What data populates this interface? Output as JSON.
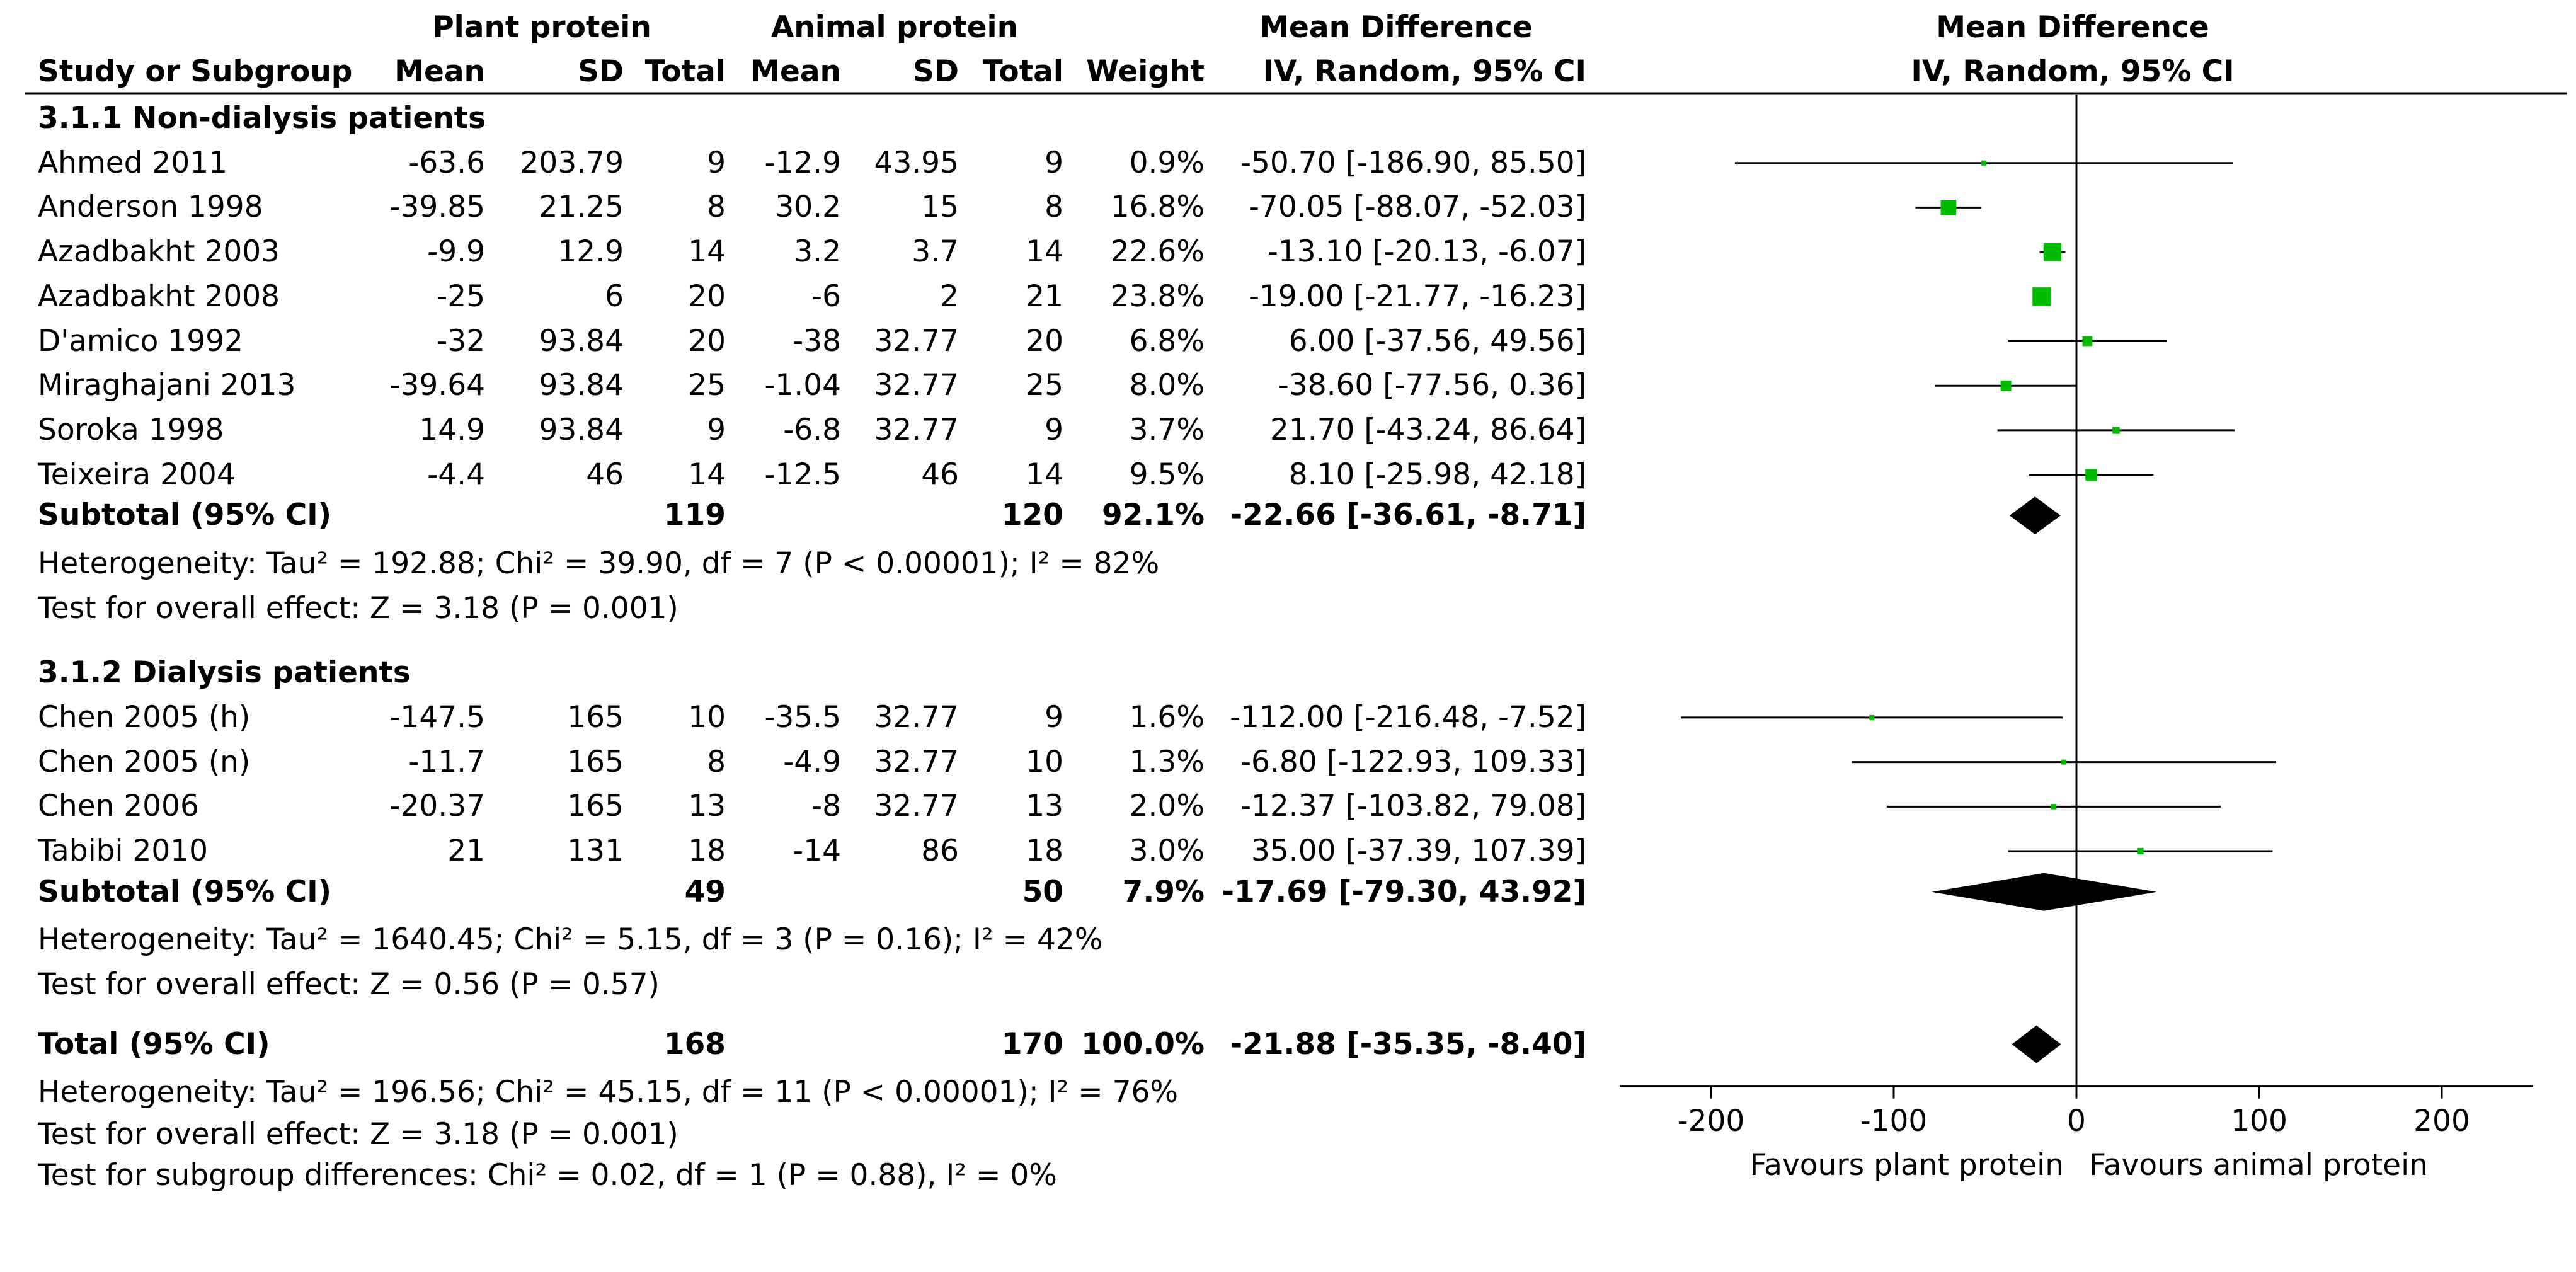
{
  "headers": {
    "plant_group": "Plant protein",
    "animal_group": "Animal protein",
    "md_group": "Mean Difference",
    "plot_group": "Mean Difference",
    "study": "Study or Subgroup",
    "mean": "Mean",
    "sd": "SD",
    "total": "Total",
    "weight": "Weight",
    "method": "IV, Random, 95% CI",
    "plot_method": "IV, Random, 95% CI"
  },
  "subgroups": [
    {
      "title": "3.1.1 Non-dialysis patients",
      "studies": [
        {
          "name": "Ahmed 2011",
          "pm": "-63.6",
          "psd": "203.79",
          "pn": "9",
          "am": "-12.9",
          "asd": "43.95",
          "an": "9",
          "weight": "0.9%",
          "ci": "-50.70 [-186.90, 85.50]",
          "md": -50.7,
          "lo": -186.9,
          "hi": 85.5,
          "w": 0.9
        },
        {
          "name": "Anderson 1998",
          "pm": "-39.85",
          "psd": "21.25",
          "pn": "8",
          "am": "30.2",
          "asd": "15",
          "an": "8",
          "weight": "16.8%",
          "ci": "-70.05 [-88.07, -52.03]",
          "md": -70.05,
          "lo": -88.07,
          "hi": -52.03,
          "w": 16.8
        },
        {
          "name": "Azadbakht 2003",
          "pm": "-9.9",
          "psd": "12.9",
          "pn": "14",
          "am": "3.2",
          "asd": "3.7",
          "an": "14",
          "weight": "22.6%",
          "ci": "-13.10 [-20.13, -6.07]",
          "md": -13.1,
          "lo": -20.13,
          "hi": -6.07,
          "w": 22.6
        },
        {
          "name": "Azadbakht 2008",
          "pm": "-25",
          "psd": "6",
          "pn": "20",
          "am": "-6",
          "asd": "2",
          "an": "21",
          "weight": "23.8%",
          "ci": "-19.00 [-21.77, -16.23]",
          "md": -19.0,
          "lo": -21.77,
          "hi": -16.23,
          "w": 23.8
        },
        {
          "name": "D'amico 1992",
          "pm": "-32",
          "psd": "93.84",
          "pn": "20",
          "am": "-38",
          "asd": "32.77",
          "an": "20",
          "weight": "6.8%",
          "ci": "6.00 [-37.56, 49.56]",
          "md": 6.0,
          "lo": -37.56,
          "hi": 49.56,
          "w": 6.8
        },
        {
          "name": "Miraghajani 2013",
          "pm": "-39.64",
          "psd": "93.84",
          "pn": "25",
          "am": "-1.04",
          "asd": "32.77",
          "an": "25",
          "weight": "8.0%",
          "ci": "-38.60 [-77.56, 0.36]",
          "md": -38.6,
          "lo": -77.56,
          "hi": 0.36,
          "w": 8.0
        },
        {
          "name": "Soroka 1998",
          "pm": "14.9",
          "psd": "93.84",
          "pn": "9",
          "am": "-6.8",
          "asd": "32.77",
          "an": "9",
          "weight": "3.7%",
          "ci": "21.70 [-43.24, 86.64]",
          "md": 21.7,
          "lo": -43.24,
          "hi": 86.64,
          "w": 3.7
        },
        {
          "name": "Teixeira 2004",
          "pm": "-4.4",
          "psd": "46",
          "pn": "14",
          "am": "-12.5",
          "asd": "46",
          "an": "14",
          "weight": "9.5%",
          "ci": "8.10 [-25.98, 42.18]",
          "md": 8.1,
          "lo": -25.98,
          "hi": 42.18,
          "w": 9.5
        }
      ],
      "subtotal": {
        "label": "Subtotal (95% CI)",
        "pn": "119",
        "an": "120",
        "weight": "92.1%",
        "ci": "-22.66 [-36.61, -8.71]",
        "md": -22.66,
        "lo": -36.61,
        "hi": -8.71
      },
      "heterogeneity": "Heterogeneity: Tau² = 192.88; Chi² = 39.90, df = 7 (P < 0.00001); I² = 82%",
      "overall": "Test for overall effect: Z = 3.18 (P = 0.001)"
    },
    {
      "title": "3.1.2 Dialysis patients",
      "studies": [
        {
          "name": "Chen 2005 (h)",
          "pm": "-147.5",
          "psd": "165",
          "pn": "10",
          "am": "-35.5",
          "asd": "32.77",
          "an": "9",
          "weight": "1.6%",
          "ci": "-112.00 [-216.48, -7.52]",
          "md": -112.0,
          "lo": -216.48,
          "hi": -7.52,
          "w": 1.6
        },
        {
          "name": "Chen 2005 (n)",
          "pm": "-11.7",
          "psd": "165",
          "pn": "8",
          "am": "-4.9",
          "asd": "32.77",
          "an": "10",
          "weight": "1.3%",
          "ci": "-6.80 [-122.93, 109.33]",
          "md": -6.8,
          "lo": -122.93,
          "hi": 109.33,
          "w": 1.3
        },
        {
          "name": "Chen 2006",
          "pm": "-20.37",
          "psd": "165",
          "pn": "13",
          "am": "-8",
          "asd": "32.77",
          "an": "13",
          "weight": "2.0%",
          "ci": "-12.37 [-103.82, 79.08]",
          "md": -12.37,
          "lo": -103.82,
          "hi": 79.08,
          "w": 2.0
        },
        {
          "name": "Tabibi 2010",
          "pm": "21",
          "psd": "131",
          "pn": "18",
          "am": "-14",
          "asd": "86",
          "an": "18",
          "weight": "3.0%",
          "ci": "35.00 [-37.39, 107.39]",
          "md": 35.0,
          "lo": -37.39,
          "hi": 107.39,
          "w": 3.0
        }
      ],
      "subtotal": {
        "label": "Subtotal (95% CI)",
        "pn": "49",
        "an": "50",
        "weight": "7.9%",
        "ci": "-17.69 [-79.30, 43.92]",
        "md": -17.69,
        "lo": -79.3,
        "hi": 43.92
      },
      "heterogeneity": "Heterogeneity: Tau² = 1640.45; Chi² = 5.15, df = 3 (P = 0.16); I² = 42%",
      "overall": "Test for overall effect: Z = 0.56 (P = 0.57)"
    }
  ],
  "total": {
    "label": "Total (95% CI)",
    "pn": "168",
    "an": "170",
    "weight": "100.0%",
    "ci": "-21.88 [-35.35, -8.40]",
    "md": -21.88,
    "lo": -35.35,
    "hi": -8.4,
    "heterogeneity": "Heterogeneity: Tau² = 196.56; Chi² = 45.15, df = 11 (P < 0.00001); I² = 76%",
    "overall": "Test for overall effect: Z = 3.18 (P = 0.001)",
    "subgroup_diff": "Test for subgroup differences: Chi² = 0.02, df = 1 (P = 0.88), I² = 0%"
  },
  "chart_data": {
    "type": "forest",
    "title": "Mean Difference",
    "subtitle": "IV, Random, 95% CI",
    "xlim": [
      -250,
      250
    ],
    "ticks": [
      -200,
      -100,
      0,
      100,
      200
    ],
    "tick_labels": [
      "-200",
      "-100",
      "0",
      "100",
      "200"
    ],
    "favours_left": "Favours plant protein",
    "favours_right": "Favours animal protein",
    "colors": {
      "square": "#00bb00",
      "line": "#000000",
      "diamond": "#000000"
    }
  }
}
